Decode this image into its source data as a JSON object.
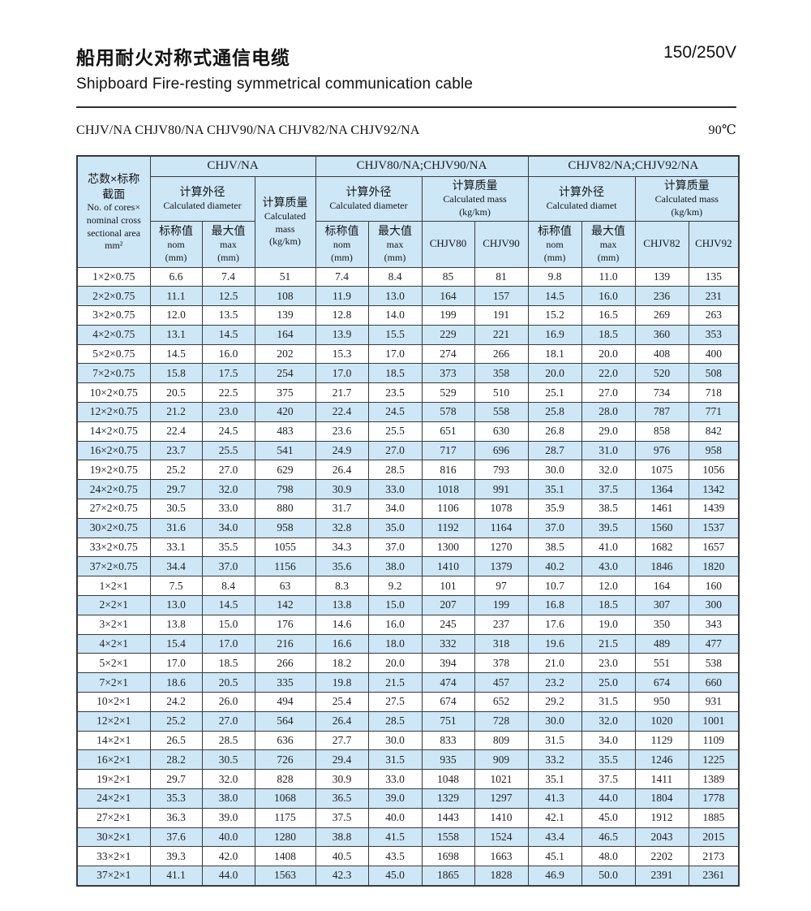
{
  "page": {
    "title_zh": "船用耐火对称式通信电缆",
    "title_en": "Shipboard Fire-resting symmetrical communication cable",
    "voltage": "150/250V",
    "models": "CHJV/NA CHJV80/NA CHJV90/NA CHJV82/NA CHJV92/NA",
    "temperature": "90℃"
  },
  "colors": {
    "stripe_blue": "#cde7f7",
    "border": "#3a3a3a",
    "text": "#1c1c1c"
  },
  "table": {
    "spec_header": {
      "zh": "芯数×标称\n截面",
      "en": "No. of cores×\nnominal cross\nsectional area\nmm²"
    },
    "groups": [
      {
        "label": "CHJV/NA",
        "dia_zh": "计算外径",
        "dia_en": "Calculated diameter",
        "mass_zh": "计算质量",
        "mass_en": "Calculated\nmass\n(kg/km)"
      },
      {
        "label": "CHJV80/NA;CHJV90/NA",
        "dia_zh": "计算外径",
        "dia_en": "Calculated diameter",
        "mass_zh": "计算质量",
        "mass_en": "Calculated mass\n(kg/km)",
        "mass_cols": [
          "CHJV80",
          "CHJV90"
        ]
      },
      {
        "label": "CHJV82/NA;CHJV92/NA",
        "dia_zh": "计算外径",
        "dia_en": "Calculated diamet",
        "mass_zh": "计算质量",
        "mass_en": "Calculated mass\n(kg/km)",
        "mass_cols": [
          "CHJV82",
          "CHJV92"
        ]
      }
    ],
    "nom_header": {
      "zh": "标称值",
      "en": "nom\n(mm)"
    },
    "max_header": {
      "zh": "最大值",
      "en": "max\n(mm)"
    },
    "rows": [
      [
        "1×2×0.75",
        "6.6",
        "7.4",
        "51",
        "7.4",
        "8.4",
        "85",
        "81",
        "9.8",
        "11.0",
        "139",
        "135"
      ],
      [
        "2×2×0.75",
        "11.1",
        "12.5",
        "108",
        "11.9",
        "13.0",
        "164",
        "157",
        "14.5",
        "16.0",
        "236",
        "231"
      ],
      [
        "3×2×0.75",
        "12.0",
        "13.5",
        "139",
        "12.8",
        "14.0",
        "199",
        "191",
        "15.2",
        "16.5",
        "269",
        "263"
      ],
      [
        "4×2×0.75",
        "13.1",
        "14.5",
        "164",
        "13.9",
        "15.5",
        "229",
        "221",
        "16.9",
        "18.5",
        "360",
        "353"
      ],
      [
        "5×2×0.75",
        "14.5",
        "16.0",
        "202",
        "15.3",
        "17.0",
        "274",
        "266",
        "18.1",
        "20.0",
        "408",
        "400"
      ],
      [
        "7×2×0.75",
        "15.8",
        "17.5",
        "254",
        "17.0",
        "18.5",
        "373",
        "358",
        "20.0",
        "22.0",
        "520",
        "508"
      ],
      [
        "10×2×0.75",
        "20.5",
        "22.5",
        "375",
        "21.7",
        "23.5",
        "529",
        "510",
        "25.1",
        "27.0",
        "734",
        "718"
      ],
      [
        "12×2×0.75",
        "21.2",
        "23.0",
        "420",
        "22.4",
        "24.5",
        "578",
        "558",
        "25.8",
        "28.0",
        "787",
        "771"
      ],
      [
        "14×2×0.75",
        "22.4",
        "24.5",
        "483",
        "23.6",
        "25.5",
        "651",
        "630",
        "26.8",
        "29.0",
        "858",
        "842"
      ],
      [
        "16×2×0.75",
        "23.7",
        "25.5",
        "541",
        "24.9",
        "27.0",
        "717",
        "696",
        "28.7",
        "31.0",
        "976",
        "958"
      ],
      [
        "19×2×0.75",
        "25.2",
        "27.0",
        "629",
        "26.4",
        "28.5",
        "816",
        "793",
        "30.0",
        "32.0",
        "1075",
        "1056"
      ],
      [
        "24×2×0.75",
        "29.7",
        "32.0",
        "798",
        "30.9",
        "33.0",
        "1018",
        "991",
        "35.1",
        "37.5",
        "1364",
        "1342"
      ],
      [
        "27×2×0.75",
        "30.5",
        "33.0",
        "880",
        "31.7",
        "34.0",
        "1106",
        "1078",
        "35.9",
        "38.5",
        "1461",
        "1439"
      ],
      [
        "30×2×0.75",
        "31.6",
        "34.0",
        "958",
        "32.8",
        "35.0",
        "1192",
        "1164",
        "37.0",
        "39.5",
        "1560",
        "1537"
      ],
      [
        "33×2×0.75",
        "33.1",
        "35.5",
        "1055",
        "34.3",
        "37.0",
        "1300",
        "1270",
        "38.5",
        "41.0",
        "1682",
        "1657"
      ],
      [
        "37×2×0.75",
        "34.4",
        "37.0",
        "1156",
        "35.6",
        "38.0",
        "1410",
        "1379",
        "40.2",
        "43.0",
        "1846",
        "1820"
      ],
      [
        "1×2×1",
        "7.5",
        "8.4",
        "63",
        "8.3",
        "9.2",
        "101",
        "97",
        "10.7",
        "12.0",
        "164",
        "160"
      ],
      [
        "2×2×1",
        "13.0",
        "14.5",
        "142",
        "13.8",
        "15.0",
        "207",
        "199",
        "16.8",
        "18.5",
        "307",
        "300"
      ],
      [
        "3×2×1",
        "13.8",
        "15.0",
        "176",
        "14.6",
        "16.0",
        "245",
        "237",
        "17.6",
        "19.0",
        "350",
        "343"
      ],
      [
        "4×2×1",
        "15.4",
        "17.0",
        "216",
        "16.6",
        "18.0",
        "332",
        "318",
        "19.6",
        "21.5",
        "489",
        "477"
      ],
      [
        "5×2×1",
        "17.0",
        "18.5",
        "266",
        "18.2",
        "20.0",
        "394",
        "378",
        "21.0",
        "23.0",
        "551",
        "538"
      ],
      [
        "7×2×1",
        "18.6",
        "20.5",
        "335",
        "19.8",
        "21.5",
        "474",
        "457",
        "23.2",
        "25.0",
        "674",
        "660"
      ],
      [
        "10×2×1",
        "24.2",
        "26.0",
        "494",
        "25.4",
        "27.5",
        "674",
        "652",
        "29.2",
        "31.5",
        "950",
        "931"
      ],
      [
        "12×2×1",
        "25.2",
        "27.0",
        "564",
        "26.4",
        "28.5",
        "751",
        "728",
        "30.0",
        "32.0",
        "1020",
        "1001"
      ],
      [
        "14×2×1",
        "26.5",
        "28.5",
        "636",
        "27.7",
        "30.0",
        "833",
        "809",
        "31.5",
        "34.0",
        "1129",
        "1109"
      ],
      [
        "16×2×1",
        "28.2",
        "30.5",
        "726",
        "29.4",
        "31.5",
        "935",
        "909",
        "33.2",
        "35.5",
        "1246",
        "1225"
      ],
      [
        "19×2×1",
        "29.7",
        "32.0",
        "828",
        "30.9",
        "33.0",
        "1048",
        "1021",
        "35.1",
        "37.5",
        "1411",
        "1389"
      ],
      [
        "24×2×1",
        "35.3",
        "38.0",
        "1068",
        "36.5",
        "39.0",
        "1329",
        "1297",
        "41.3",
        "44.0",
        "1804",
        "1778"
      ],
      [
        "27×2×1",
        "36.3",
        "39.0",
        "1175",
        "37.5",
        "40.0",
        "1443",
        "1410",
        "42.1",
        "45.0",
        "1912",
        "1885"
      ],
      [
        "30×2×1",
        "37.6",
        "40.0",
        "1280",
        "38.8",
        "41.5",
        "1558",
        "1524",
        "43.4",
        "46.5",
        "2043",
        "2015"
      ],
      [
        "33×2×1",
        "39.3",
        "42.0",
        "1408",
        "40.5",
        "43.5",
        "1698",
        "1663",
        "45.1",
        "48.0",
        "2202",
        "2173"
      ],
      [
        "37×2×1",
        "41.1",
        "44.0",
        "1563",
        "42.3",
        "45.0",
        "1865",
        "1828",
        "46.9",
        "50.0",
        "2391",
        "2361"
      ]
    ]
  }
}
